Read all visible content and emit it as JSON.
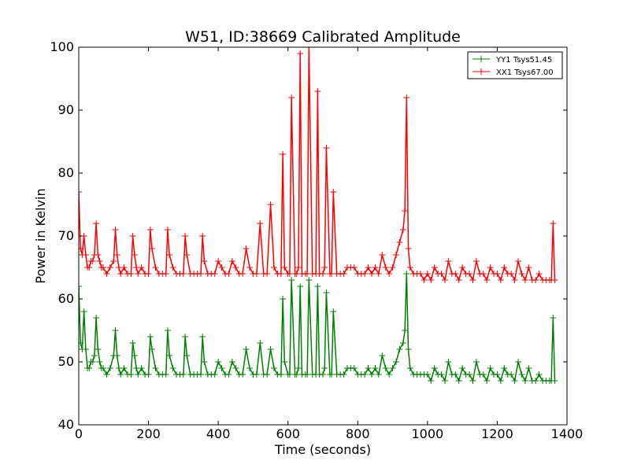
{
  "chart_data": {
    "type": "line",
    "title": "W51, ID:38669 Calibrated Amplitude",
    "xlabel": "Time (seconds)",
    "ylabel": "Power in Kelvin",
    "xlim": [
      0,
      1400
    ],
    "ylim": [
      40,
      100
    ],
    "xticks": [
      0,
      200,
      400,
      600,
      800,
      1000,
      1200,
      1400
    ],
    "yticks": [
      40,
      50,
      60,
      70,
      80,
      90,
      100
    ],
    "grid": false,
    "legend_position": "top-right",
    "marker": "+",
    "series": [
      {
        "name": "YY1 Tsys51.45",
        "color": "#008000",
        "x": [
          0,
          5,
          10,
          15,
          20,
          25,
          30,
          35,
          40,
          45,
          50,
          55,
          60,
          65,
          70,
          80,
          90,
          100,
          105,
          110,
          115,
          120,
          130,
          140,
          150,
          155,
          160,
          165,
          170,
          180,
          190,
          200,
          205,
          210,
          220,
          230,
          240,
          250,
          255,
          260,
          270,
          280,
          290,
          300,
          305,
          310,
          320,
          330,
          340,
          350,
          355,
          360,
          370,
          380,
          390,
          400,
          410,
          420,
          430,
          440,
          450,
          460,
          470,
          480,
          490,
          500,
          510,
          520,
          530,
          540,
          550,
          560,
          570,
          580,
          585,
          590,
          600,
          605,
          610,
          620,
          625,
          630,
          635,
          640,
          650,
          655,
          660,
          670,
          680,
          685,
          690,
          700,
          705,
          710,
          720,
          725,
          730,
          740,
          750,
          760,
          770,
          780,
          790,
          800,
          810,
          820,
          830,
          840,
          850,
          860,
          870,
          880,
          890,
          900,
          910,
          920,
          930,
          935,
          940,
          945,
          950,
          960,
          970,
          980,
          990,
          1000,
          1010,
          1020,
          1030,
          1040,
          1050,
          1060,
          1070,
          1080,
          1090,
          1100,
          1110,
          1120,
          1130,
          1140,
          1150,
          1160,
          1170,
          1180,
          1190,
          1200,
          1210,
          1220,
          1230,
          1240,
          1250,
          1260,
          1270,
          1280,
          1290,
          1300,
          1310,
          1320,
          1330,
          1340,
          1350,
          1355,
          1360,
          1365
        ],
        "y": [
          62,
          53,
          52,
          58,
          52,
          49,
          49,
          50,
          50,
          51,
          57,
          52,
          50,
          49,
          49,
          48,
          49,
          51,
          55,
          51,
          49,
          48,
          49,
          48,
          48,
          53,
          51,
          49,
          48,
          49,
          48,
          48,
          54,
          52,
          49,
          48,
          48,
          48,
          55,
          51,
          49,
          48,
          48,
          48,
          54,
          51,
          48,
          48,
          48,
          48,
          54,
          50,
          48,
          48,
          48,
          50,
          49,
          48,
          48,
          50,
          49,
          48,
          48,
          52,
          49,
          48,
          48,
          53,
          48,
          48,
          52,
          49,
          48,
          48,
          60,
          50,
          48,
          48,
          63,
          48,
          48,
          49,
          62,
          48,
          48,
          48,
          63,
          48,
          48,
          62,
          48,
          48,
          49,
          61,
          48,
          48,
          58,
          48,
          48,
          48,
          49,
          49,
          49,
          48,
          48,
          48,
          49,
          48,
          49,
          48,
          51,
          49,
          48,
          49,
          50,
          52,
          53,
          55,
          64,
          52,
          49,
          48,
          48,
          48,
          48,
          48,
          47,
          49,
          48,
          48,
          47,
          50,
          48,
          48,
          47,
          49,
          48,
          48,
          47,
          50,
          48,
          48,
          47,
          49,
          48,
          48,
          47,
          49,
          48,
          48,
          47,
          50,
          48,
          47,
          49,
          47,
          47,
          48,
          47,
          47,
          47,
          47,
          57,
          47
        ]
      },
      {
        "name": "XX1 Tsys67.00",
        "color": "#ff0000",
        "x": [
          0,
          5,
          10,
          15,
          20,
          25,
          30,
          35,
          40,
          45,
          50,
          55,
          60,
          65,
          70,
          80,
          90,
          100,
          105,
          110,
          115,
          120,
          130,
          140,
          150,
          155,
          160,
          165,
          170,
          180,
          190,
          200,
          205,
          210,
          220,
          230,
          240,
          250,
          255,
          260,
          270,
          280,
          290,
          300,
          305,
          310,
          320,
          330,
          340,
          350,
          355,
          360,
          370,
          380,
          390,
          400,
          410,
          420,
          430,
          440,
          450,
          460,
          470,
          480,
          490,
          500,
          510,
          520,
          530,
          540,
          550,
          560,
          570,
          580,
          585,
          590,
          600,
          605,
          610,
          620,
          625,
          630,
          635,
          640,
          650,
          655,
          660,
          670,
          680,
          685,
          690,
          700,
          705,
          710,
          720,
          725,
          730,
          740,
          750,
          760,
          770,
          780,
          790,
          800,
          810,
          820,
          830,
          840,
          850,
          860,
          870,
          880,
          890,
          900,
          910,
          920,
          930,
          935,
          940,
          945,
          950,
          960,
          970,
          980,
          990,
          1000,
          1010,
          1020,
          1030,
          1040,
          1050,
          1060,
          1070,
          1080,
          1090,
          1100,
          1110,
          1120,
          1130,
          1140,
          1150,
          1160,
          1170,
          1180,
          1190,
          1200,
          1210,
          1220,
          1230,
          1240,
          1250,
          1260,
          1270,
          1280,
          1290,
          1300,
          1310,
          1320,
          1330,
          1340,
          1350,
          1355,
          1360,
          1365
        ],
        "y": [
          77,
          68,
          67,
          70,
          67,
          65,
          65,
          66,
          66,
          67,
          72,
          67,
          66,
          65,
          65,
          64,
          65,
          66,
          71,
          67,
          65,
          64,
          65,
          64,
          64,
          70,
          67,
          65,
          64,
          65,
          64,
          64,
          71,
          68,
          65,
          64,
          64,
          64,
          71,
          67,
          65,
          64,
          64,
          64,
          70,
          67,
          64,
          64,
          64,
          64,
          70,
          66,
          64,
          64,
          64,
          66,
          65,
          64,
          64,
          66,
          65,
          64,
          64,
          68,
          65,
          64,
          64,
          72,
          64,
          64,
          75,
          65,
          64,
          64,
          83,
          65,
          64,
          64,
          92,
          64,
          64,
          65,
          99,
          64,
          64,
          64,
          100,
          64,
          64,
          93,
          64,
          64,
          65,
          84,
          64,
          64,
          77,
          64,
          64,
          64,
          65,
          65,
          65,
          64,
          64,
          64,
          65,
          64,
          65,
          64,
          67,
          65,
          64,
          65,
          67,
          69,
          71,
          74,
          92,
          68,
          65,
          64,
          64,
          64,
          63,
          64,
          63,
          65,
          64,
          64,
          63,
          66,
          64,
          64,
          63,
          65,
          64,
          64,
          63,
          66,
          64,
          64,
          63,
          65,
          64,
          64,
          63,
          65,
          64,
          64,
          63,
          66,
          64,
          63,
          65,
          63,
          63,
          64,
          63,
          63,
          63,
          63,
          72,
          63
        ]
      }
    ]
  }
}
